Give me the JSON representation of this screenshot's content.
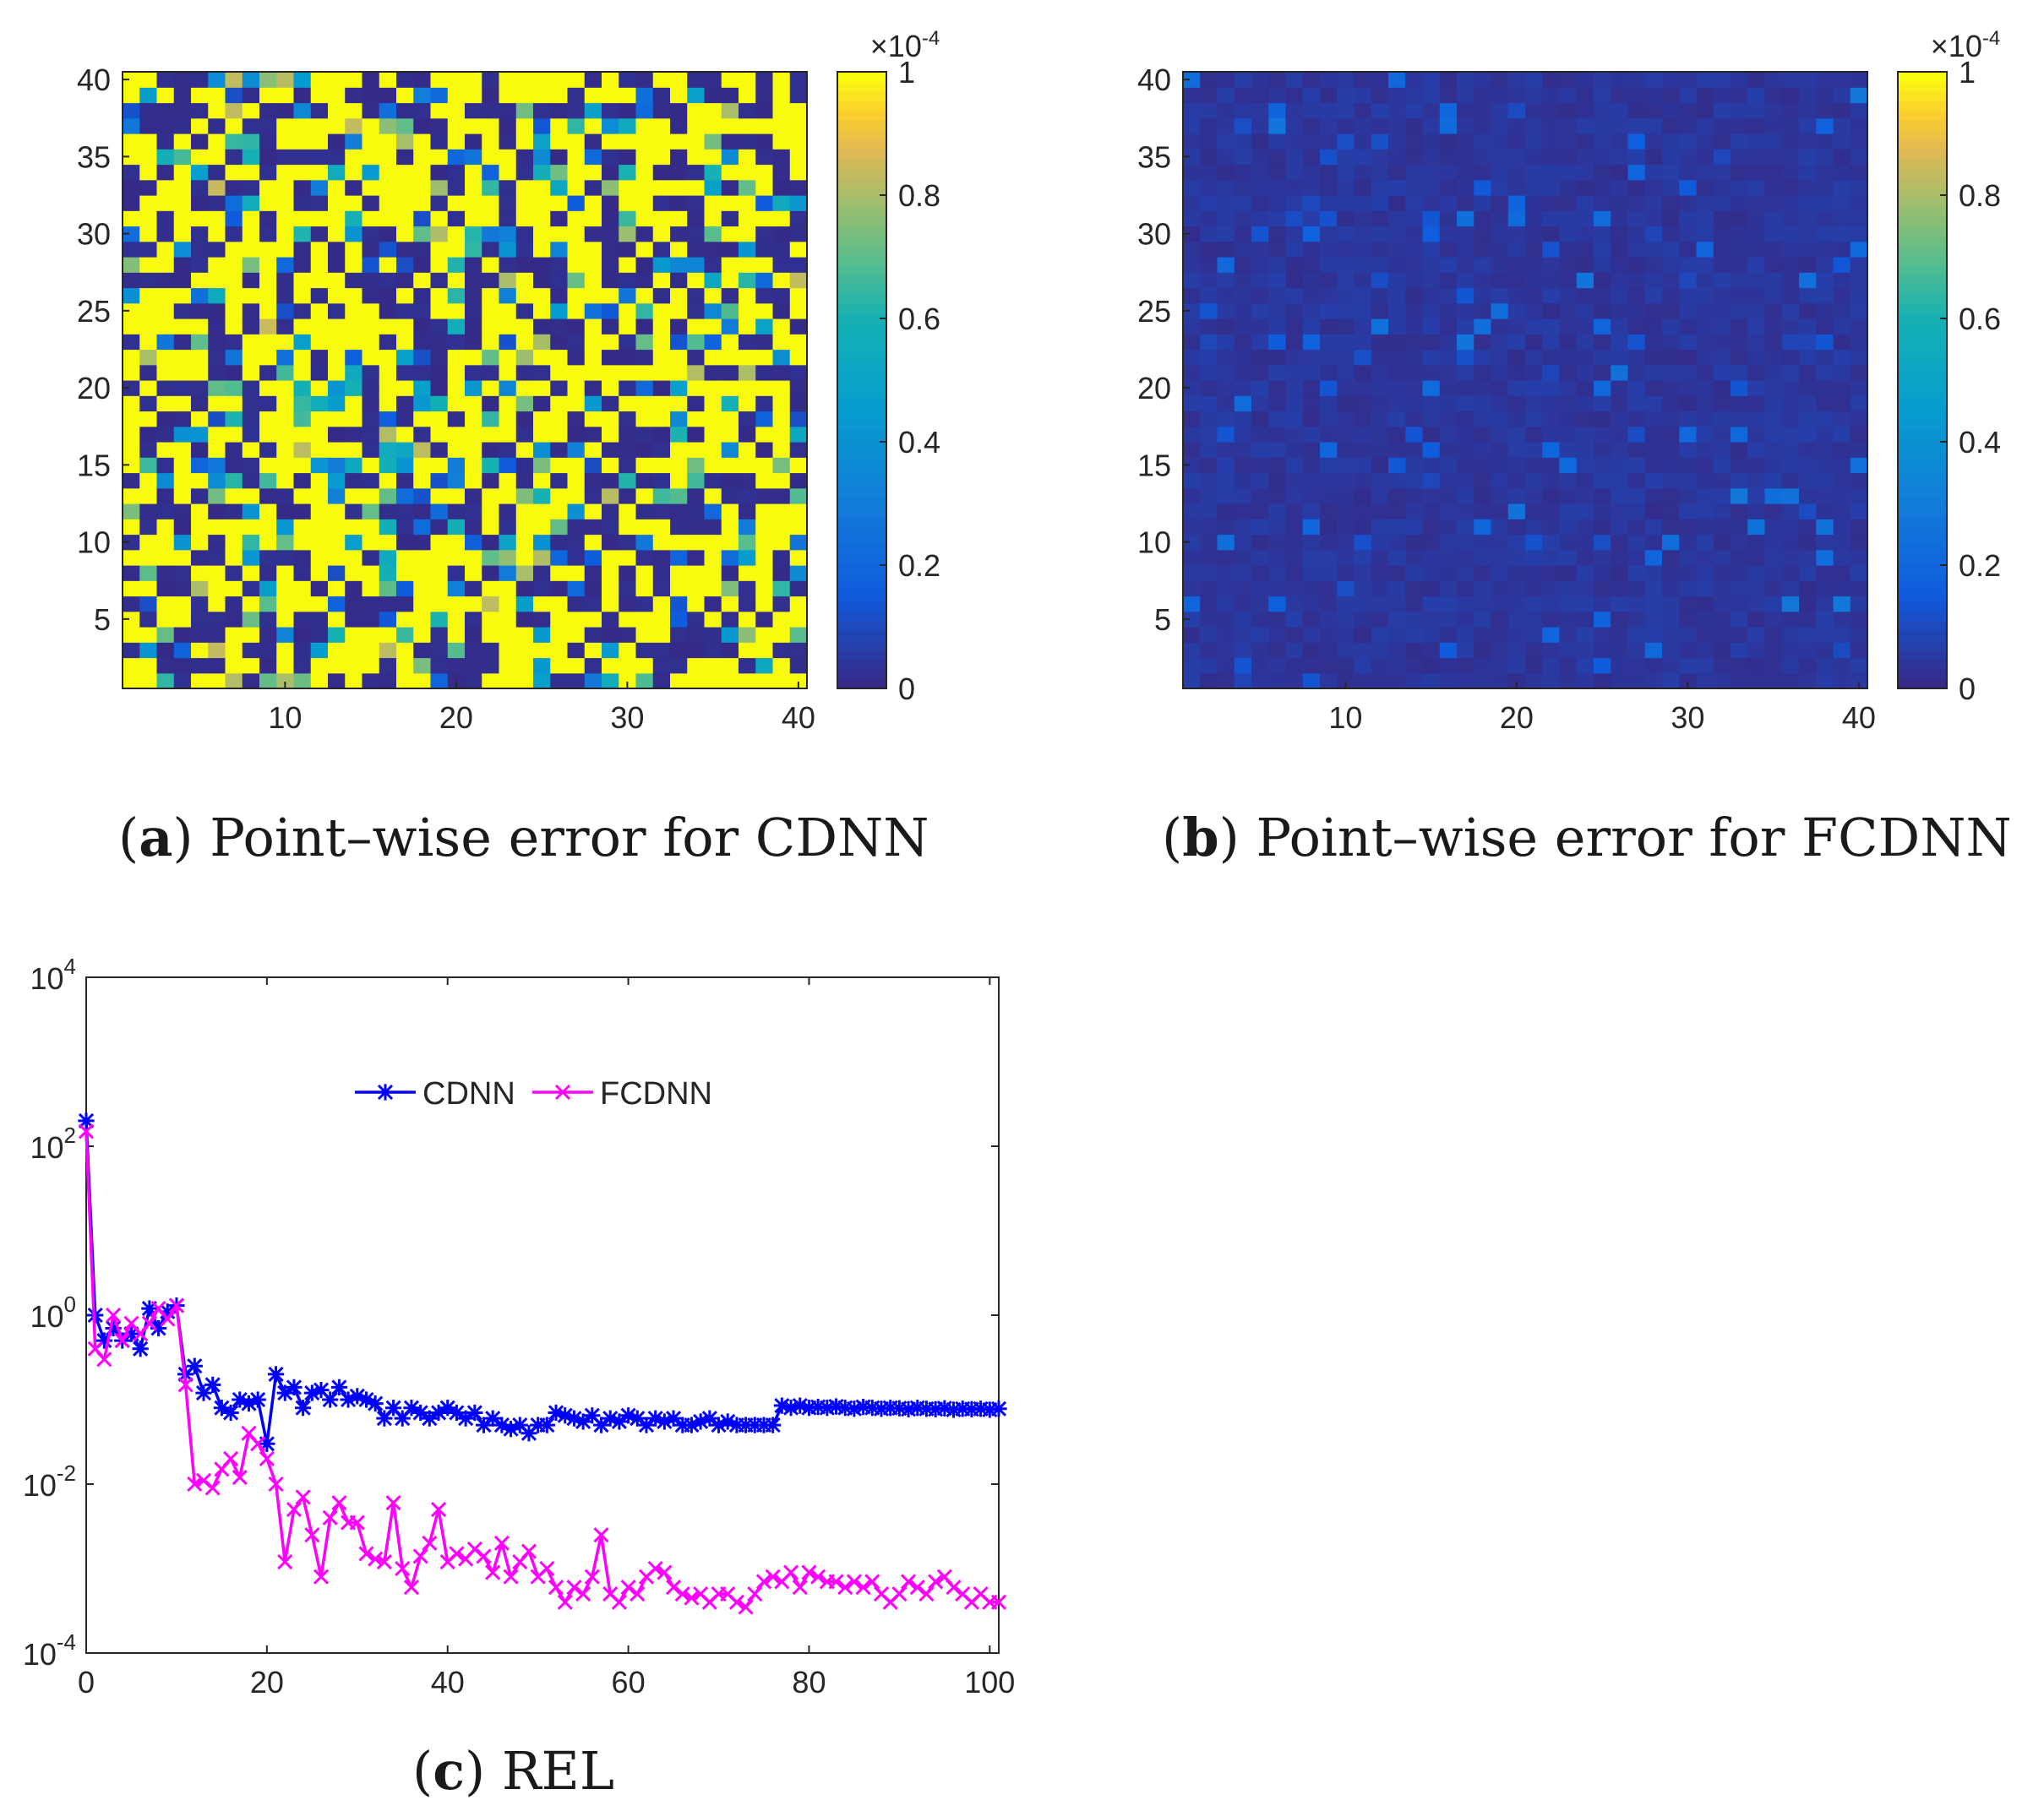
{
  "chart_data": [
    {
      "type": "heatmap",
      "panel": "a",
      "caption_letter": "a",
      "caption_text": "Point–wise error for CDNN",
      "grid_size": 40,
      "xlim": [
        0.5,
        40.5
      ],
      "ylim": [
        0.5,
        40.5
      ],
      "xticks": [
        "10",
        "20",
        "30",
        "40"
      ],
      "yticks": [
        "5",
        "10",
        "15",
        "20",
        "25",
        "30",
        "35",
        "40"
      ],
      "colorbar": {
        "min": 0,
        "max": 1,
        "ticks": [
          "0",
          "0.2",
          "0.4",
          "0.6",
          "0.8",
          "1"
        ],
        "exponent_label": "×10",
        "exponent": "-4",
        "colormap": "parula"
      },
      "value_distribution": "about half of cells saturated at ≥1e-4 (yellow), remainder mostly near 0 with scattered mid values",
      "seed": 1
    },
    {
      "type": "heatmap",
      "panel": "b",
      "caption_letter": "b",
      "caption_text": "Point–wise error for FCDNN",
      "grid_size": 40,
      "xlim": [
        0.5,
        40.5
      ],
      "ylim": [
        0.5,
        40.5
      ],
      "xticks": [
        "10",
        "20",
        "30",
        "40"
      ],
      "yticks": [
        "5",
        "10",
        "15",
        "20",
        "25",
        "30",
        "35",
        "40"
      ],
      "colorbar": {
        "min": 0,
        "max": 1,
        "ticks": [
          "0",
          "0.2",
          "0.4",
          "0.6",
          "0.8",
          "1"
        ],
        "exponent_label": "×10",
        "exponent": "-4",
        "colormap": "parula"
      },
      "value_distribution": "almost all cells near 0 (dark blue), a few cells around 0.1–0.25e-4",
      "seed": 7
    },
    {
      "type": "line",
      "panel": "c",
      "caption_letter": "c",
      "caption_text": "REL",
      "xscale": "linear",
      "yscale": "log",
      "xlim": [
        0,
        101
      ],
      "ylim": [
        0.0001,
        10000
      ],
      "xticks": [
        "0",
        "20",
        "40",
        "60",
        "80",
        "100"
      ],
      "yticks": [
        {
          "base": "10",
          "exp": "-4",
          "value": 0.0001
        },
        {
          "base": "10",
          "exp": "-2",
          "value": 0.01
        },
        {
          "base": "10",
          "exp": "0",
          "value": 1
        },
        {
          "base": "10",
          "exp": "2",
          "value": 100
        },
        {
          "base": "10",
          "exp": "4",
          "value": 10000
        }
      ],
      "legend_position": "top-center",
      "series": [
        {
          "name": "CDNN",
          "color": "#0000ff",
          "marker": "asterisk",
          "x": [
            0,
            1,
            2,
            3,
            4,
            5,
            6,
            7,
            8,
            9,
            10,
            11,
            12,
            13,
            14,
            15,
            16,
            17,
            18,
            19,
            20,
            21,
            22,
            23,
            24,
            25,
            26,
            27,
            28,
            29,
            30,
            31,
            32,
            33,
            34,
            35,
            36,
            37,
            38,
            39,
            40,
            41,
            42,
            43,
            44,
            45,
            46,
            47,
            48,
            49,
            50,
            51,
            52,
            53,
            54,
            55,
            56,
            57,
            58,
            59,
            60,
            61,
            62,
            63,
            64,
            65,
            66,
            67,
            68,
            69,
            70,
            71,
            72,
            73,
            74,
            75,
            76,
            77,
            78,
            79,
            80,
            81,
            82,
            83,
            84,
            85,
            86,
            87,
            88,
            89,
            90,
            91,
            92,
            93,
            94,
            95,
            96,
            97,
            98,
            99,
            100,
            101
          ],
          "values": [
            200,
            1.0,
            0.5,
            0.7,
            0.5,
            0.6,
            0.4,
            1.2,
            0.7,
            1.1,
            1.3,
            0.2,
            0.25,
            0.12,
            0.15,
            0.08,
            0.07,
            0.1,
            0.09,
            0.1,
            0.03,
            0.2,
            0.12,
            0.14,
            0.08,
            0.12,
            0.13,
            0.1,
            0.14,
            0.1,
            0.11,
            0.1,
            0.09,
            0.06,
            0.08,
            0.06,
            0.08,
            0.07,
            0.06,
            0.07,
            0.08,
            0.07,
            0.06,
            0.07,
            0.05,
            0.06,
            0.05,
            0.045,
            0.05,
            0.04,
            0.05,
            0.05,
            0.07,
            0.065,
            0.06,
            0.055,
            0.065,
            0.05,
            0.06,
            0.055,
            0.065,
            0.06,
            0.05,
            0.06,
            0.055,
            0.06,
            0.05,
            0.05,
            0.055,
            0.06,
            0.05,
            0.055,
            0.05,
            0.05,
            0.05,
            0.05,
            0.05,
            0.085,
            0.08,
            0.085,
            0.08,
            0.082,
            0.08,
            0.083,
            0.08,
            0.078,
            0.082,
            0.08,
            0.078,
            0.08,
            0.079,
            0.077,
            0.08,
            0.078,
            0.077,
            0.079,
            0.076,
            0.078,
            0.077,
            0.078,
            0.076,
            0.078
          ]
        },
        {
          "name": "FCDNN",
          "color": "#ff00ff",
          "marker": "x",
          "x": [
            0,
            1,
            2,
            3,
            4,
            5,
            6,
            7,
            8,
            9,
            10,
            11,
            12,
            13,
            14,
            15,
            16,
            17,
            18,
            19,
            20,
            21,
            22,
            23,
            24,
            25,
            26,
            27,
            28,
            29,
            30,
            31,
            32,
            33,
            34,
            35,
            36,
            37,
            38,
            39,
            40,
            41,
            42,
            43,
            44,
            45,
            46,
            47,
            48,
            49,
            50,
            51,
            52,
            53,
            54,
            55,
            56,
            57,
            58,
            59,
            60,
            61,
            62,
            63,
            64,
            65,
            66,
            67,
            68,
            69,
            70,
            71,
            72,
            73,
            74,
            75,
            76,
            77,
            78,
            79,
            80,
            81,
            82,
            83,
            84,
            85,
            86,
            87,
            88,
            89,
            90,
            91,
            92,
            93,
            94,
            95,
            96,
            97,
            98,
            99,
            100,
            101
          ],
          "values": [
            150,
            0.4,
            0.3,
            1.0,
            0.5,
            0.8,
            0.6,
            0.8,
            1.2,
            0.9,
            1.3,
            0.15,
            0.01,
            0.011,
            0.009,
            0.015,
            0.02,
            0.012,
            0.04,
            0.03,
            0.02,
            0.01,
            0.0012,
            0.005,
            0.007,
            0.0025,
            0.0008,
            0.004,
            0.006,
            0.0035,
            0.0035,
            0.0015,
            0.0013,
            0.0012,
            0.006,
            0.001,
            0.0006,
            0.0014,
            0.002,
            0.005,
            0.0012,
            0.0015,
            0.0013,
            0.0017,
            0.0014,
            0.0009,
            0.002,
            0.0008,
            0.0012,
            0.0016,
            0.0008,
            0.001,
            0.0006,
            0.0004,
            0.0006,
            0.0005,
            0.0008,
            0.0025,
            0.0005,
            0.0004,
            0.0006,
            0.0005,
            0.0008,
            0.001,
            0.0009,
            0.0006,
            0.0005,
            0.00045,
            0.0005,
            0.0004,
            0.0005,
            0.0005,
            0.0004,
            0.00035,
            0.0005,
            0.0007,
            0.0008,
            0.0007,
            0.0009,
            0.0006,
            0.0009,
            0.0008,
            0.0007,
            0.0007,
            0.0006,
            0.0007,
            0.0006,
            0.0007,
            0.0005,
            0.0004,
            0.0005,
            0.0007,
            0.0006,
            0.0005,
            0.0007,
            0.0008,
            0.0006,
            0.0005,
            0.0004,
            0.0005,
            0.0004,
            0.0004
          ]
        }
      ]
    }
  ]
}
